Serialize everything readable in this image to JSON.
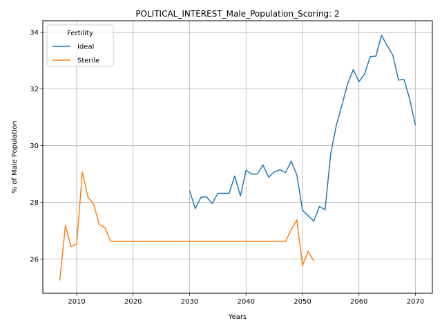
{
  "chart_data": {
    "type": "line",
    "title": "POLITICAL_INTEREST_Male_Population_Scoring: 2",
    "xlabel": "Years",
    "ylabel": "% of Male Population",
    "xlim": [
      2004,
      2073
    ],
    "ylim": [
      24.8,
      34.4
    ],
    "xticks": [
      2010,
      2020,
      2030,
      2040,
      2050,
      2060,
      2070
    ],
    "yticks": [
      26,
      28,
      30,
      32,
      34
    ],
    "grid": true,
    "legend": {
      "title": "Fertility",
      "position": "top-left"
    },
    "series": [
      {
        "name": "Ideal",
        "color": "#1f77b4",
        "x": [
          2030,
          2031,
          2032,
          2033,
          2034,
          2035,
          2036,
          2037,
          2038,
          2039,
          2040,
          2041,
          2042,
          2043,
          2044,
          2045,
          2046,
          2047,
          2048,
          2049,
          2050,
          2051,
          2052,
          2053,
          2054,
          2055,
          2056,
          2057,
          2058,
          2059,
          2060,
          2061,
          2062,
          2063,
          2064,
          2065,
          2066,
          2067,
          2068,
          2069,
          2070
        ],
        "y": [
          28.42,
          27.78,
          28.18,
          28.2,
          27.96,
          28.32,
          28.32,
          28.32,
          28.93,
          28.23,
          29.13,
          29.0,
          29.0,
          29.32,
          28.89,
          29.07,
          29.15,
          29.05,
          29.45,
          28.97,
          27.73,
          27.53,
          27.34,
          27.86,
          27.74,
          29.72,
          30.72,
          31.44,
          32.18,
          32.68,
          32.25,
          32.53,
          33.14,
          33.15,
          33.89,
          33.52,
          33.19,
          32.31,
          32.33,
          31.63,
          30.72
        ]
      },
      {
        "name": "Sterile",
        "color": "#ff7f0e",
        "x": [
          2007,
          2008,
          2009,
          2010,
          2011,
          2012,
          2013,
          2014,
          2015,
          2016,
          2017,
          2018,
          2019,
          2020,
          2021,
          2022,
          2023,
          2024,
          2025,
          2026,
          2027,
          2028,
          2029,
          2030,
          2031,
          2032,
          2033,
          2034,
          2035,
          2036,
          2037,
          2038,
          2039,
          2040,
          2041,
          2042,
          2043,
          2044,
          2045,
          2046,
          2047,
          2048,
          2049,
          2050,
          2051,
          2052
        ],
        "y": [
          25.25,
          27.19,
          26.44,
          26.54,
          29.07,
          28.19,
          27.94,
          27.22,
          27.11,
          26.63,
          26.63,
          26.63,
          26.63,
          26.63,
          26.63,
          26.63,
          26.63,
          26.63,
          26.63,
          26.63,
          26.63,
          26.63,
          26.63,
          26.63,
          26.63,
          26.63,
          26.63,
          26.63,
          26.63,
          26.63,
          26.63,
          26.63,
          26.63,
          26.63,
          26.63,
          26.63,
          26.63,
          26.63,
          26.63,
          26.63,
          26.63,
          27.04,
          27.39,
          25.77,
          26.28,
          25.93
        ]
      }
    ]
  }
}
